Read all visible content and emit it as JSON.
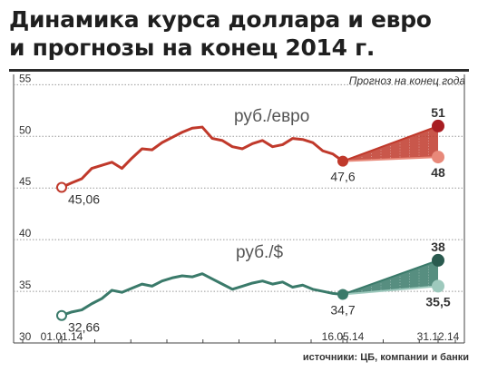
{
  "title_lines": [
    "Динамика курса доллара и евро",
    "и прогнозы на конец 2014 г."
  ],
  "forecast_caption": "Прогноз на конец года",
  "source_note": "источники: ЦБ, компании и банки",
  "chart_data": {
    "type": "line",
    "title": "Динамика курса доллара и евро и прогнозы на конец 2014 г.",
    "ylim": [
      30,
      56
    ],
    "yticks": [
      30,
      35,
      40,
      45,
      50,
      55
    ],
    "grid": true,
    "x_tick_labels": [
      "01.01.14",
      "16.05.14",
      "31.12.14"
    ],
    "colors": {
      "eur": "#c0392b",
      "eur_light": "#e8897a",
      "usd": "#3a7a6a",
      "usd_light": "#9ec9bd",
      "grid": "#999999"
    },
    "series": [
      {
        "name": "руб./евро",
        "start_label": "45,06",
        "end_label": "47,6",
        "values": [
          45.06,
          45.5,
          45.9,
          46.9,
          47.2,
          47.5,
          46.9,
          47.9,
          48.8,
          48.7,
          49.4,
          49.9,
          50.4,
          50.8,
          50.9,
          49.8,
          49.6,
          49.0,
          48.8,
          49.3,
          49.6,
          49.0,
          49.2,
          49.8,
          49.7,
          49.4,
          48.6,
          48.3,
          47.6
        ],
        "forecast": {
          "high": 51,
          "low": 48,
          "high_label": "51",
          "low_label": "48"
        }
      },
      {
        "name": "руб./$",
        "start_label": "32,66",
        "end_label": "34,7",
        "values": [
          32.66,
          33.0,
          33.2,
          33.8,
          34.3,
          35.1,
          34.9,
          35.3,
          35.7,
          35.5,
          36.0,
          36.3,
          36.5,
          36.4,
          36.7,
          36.2,
          35.7,
          35.2,
          35.5,
          35.8,
          36.0,
          35.7,
          35.9,
          35.4,
          35.6,
          35.2,
          35.0,
          34.8,
          34.7
        ],
        "forecast": {
          "high": 38,
          "low": 35.5,
          "high_label": "38",
          "low_label": "35,5"
        }
      }
    ]
  }
}
